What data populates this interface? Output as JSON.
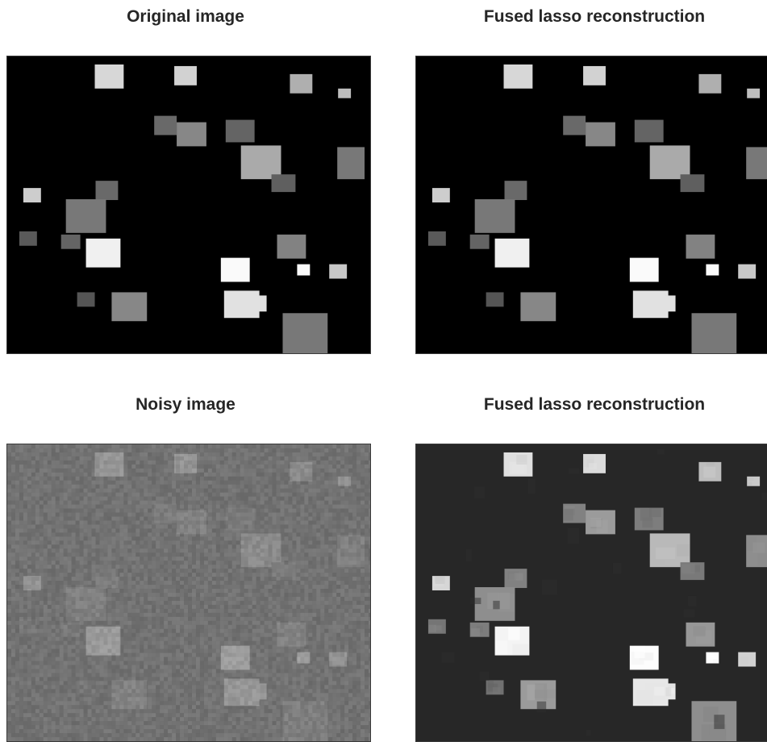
{
  "figure": {
    "panels": [
      {
        "id": "orig",
        "title": "Original image",
        "background": "#000000",
        "noise": false,
        "blocky": false
      },
      {
        "id": "fused1",
        "title": "Fused lasso reconstruction",
        "background": "#000000",
        "noise": false,
        "blocky": false
      },
      {
        "id": "noisy",
        "title": "Noisy image",
        "background": "#6f6f6f",
        "noise": true,
        "blocky": false
      },
      {
        "id": "fused2",
        "title": "Fused lasso reconstruction",
        "background": "#272727",
        "noise": false,
        "blocky": true
      }
    ]
  }
}
